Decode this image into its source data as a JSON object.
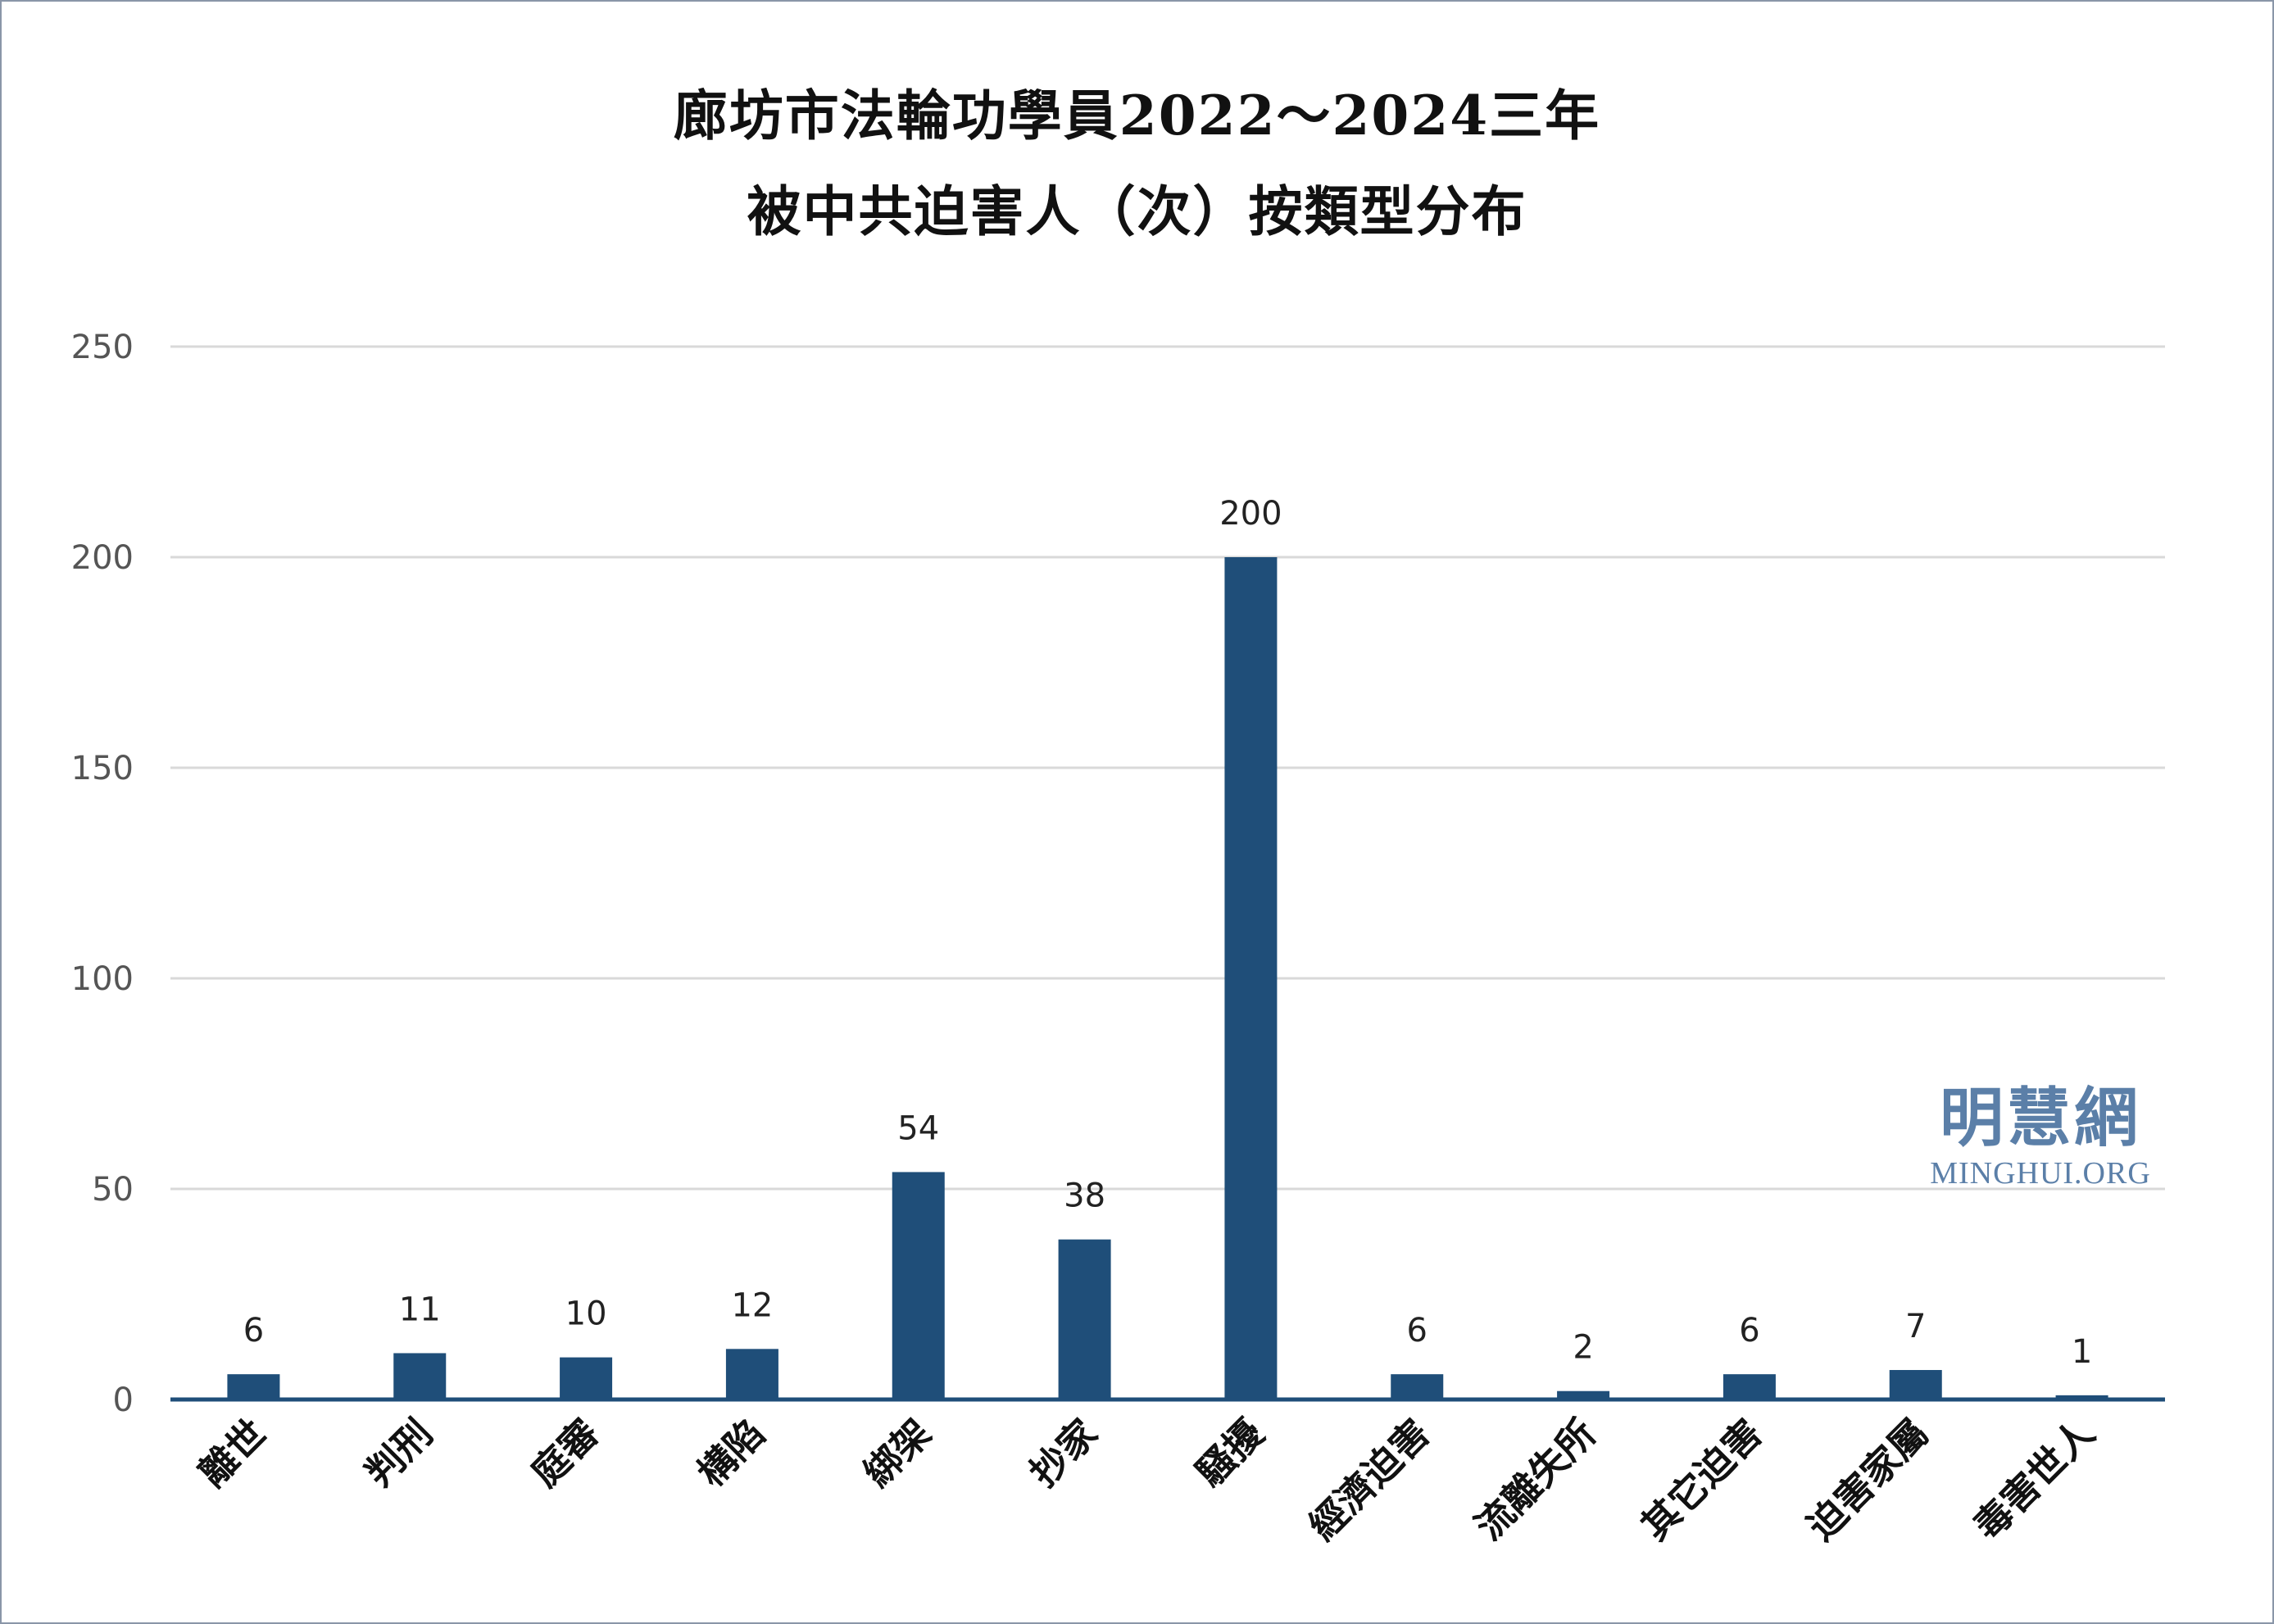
{
  "colors": {
    "bar": "#1f4e79",
    "grid": "#d9d9d9",
    "axis": "#1f4e79",
    "watermark": "#5b7fa8",
    "border": "#8a96a8"
  },
  "chart_data": {
    "type": "bar",
    "title": "廊坊市法輪功學員2022～2024三年",
    "subtitle": "被中共迫害人（次）按類型分布",
    "categories": [
      "離世",
      "判刑",
      "庭審",
      "構陷",
      "綁架",
      "抄家",
      "騷擾",
      "經濟迫害",
      "流離失所",
      "其它迫害",
      "迫害家屬",
      "毒害世人"
    ],
    "values": [
      6,
      11,
      10,
      12,
      54,
      38,
      200,
      6,
      2,
      6,
      7,
      1
    ],
    "ylim": [
      0,
      250
    ],
    "yticks": [
      0,
      50,
      100,
      150,
      200,
      250
    ],
    "grid": true,
    "xlabel": "",
    "ylabel": ""
  },
  "watermark": {
    "chinese": "明慧網",
    "english": "MINGHUI.ORG"
  }
}
